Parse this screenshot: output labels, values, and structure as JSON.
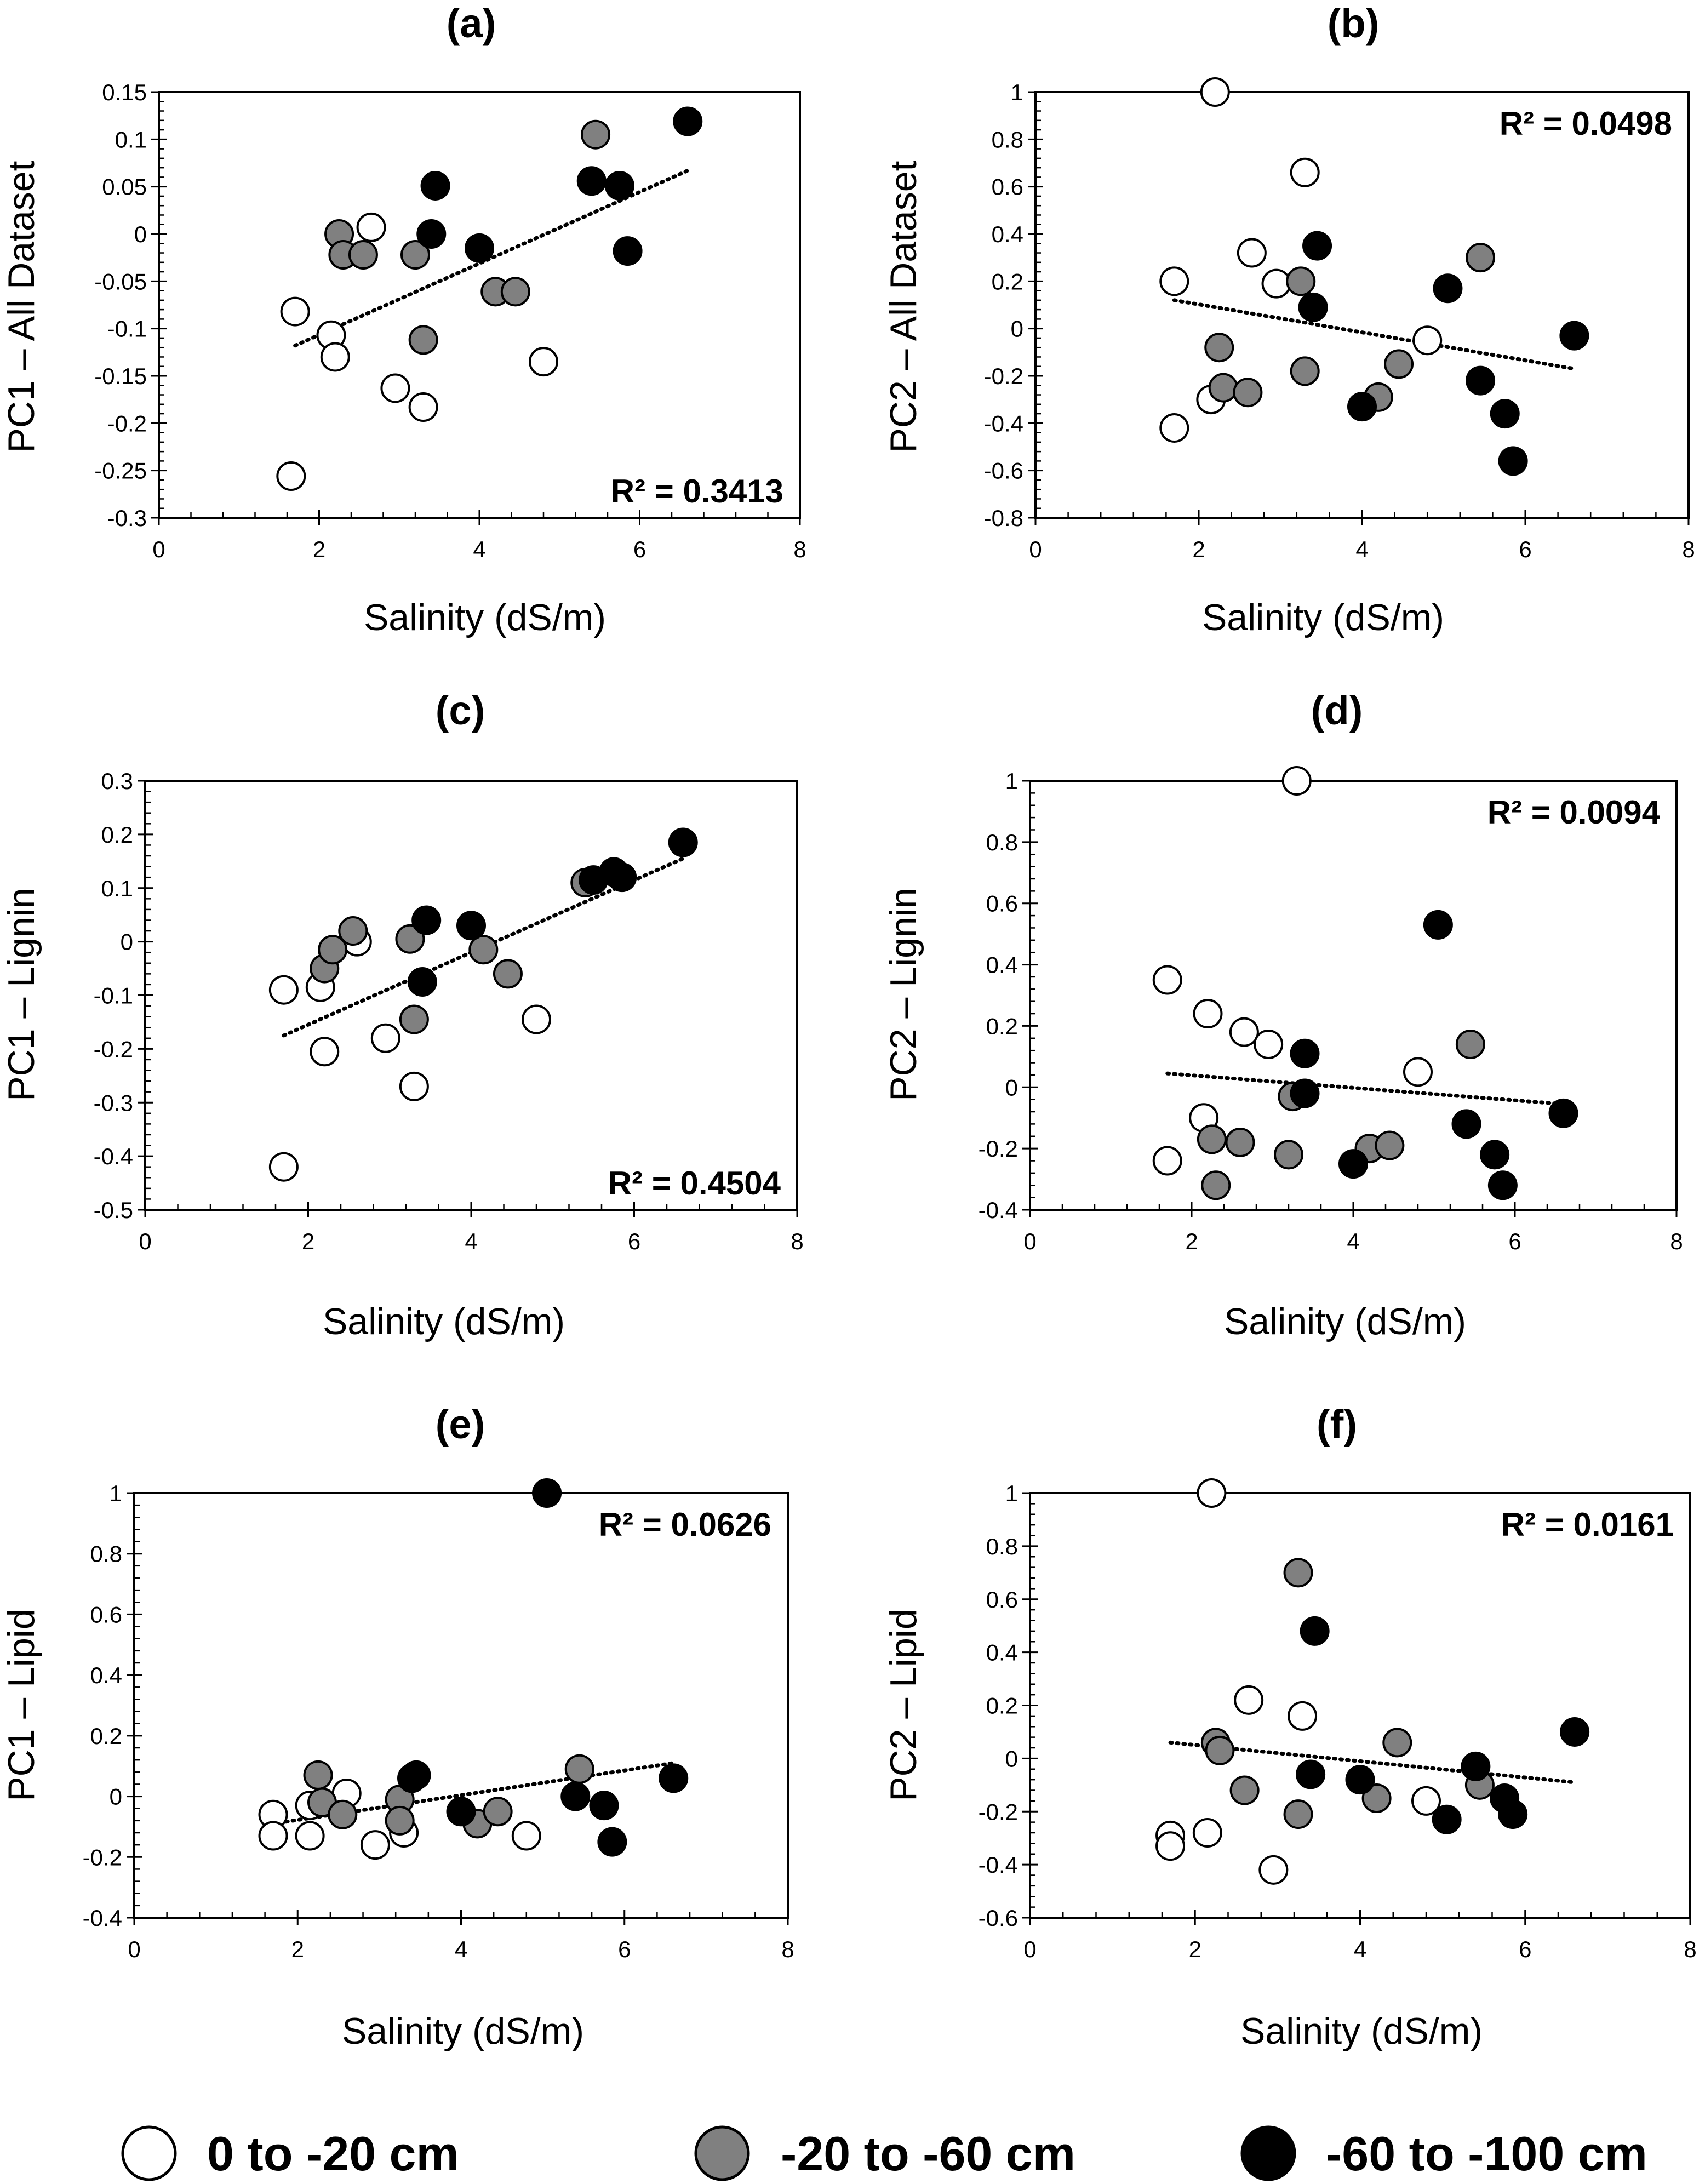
{
  "colors": {
    "shallow": "#ffffff",
    "mid": "#808080",
    "deep": "#000000",
    "stroke": "#000000"
  },
  "legend": [
    {
      "label": "0 to -20 cm",
      "color": "#ffffff"
    },
    {
      "label": "-20 to -60 cm",
      "color": "#808080"
    },
    {
      "label": "-60 to -100 cm",
      "color": "#000000"
    }
  ],
  "chart_data": [
    {
      "panel": "(a)",
      "type": "scatter",
      "xlabel": "Salinity (dS/m)",
      "ylabel": "PC1 – All Dataset",
      "xlim": [
        0,
        8
      ],
      "ylim": [
        -0.3,
        0.15
      ],
      "xticks": [
        0,
        2,
        4,
        6,
        8
      ],
      "xtick_labels": [
        "0",
        "2",
        "4",
        "6",
        "8"
      ],
      "yticks": [
        -0.3,
        -0.25,
        -0.2,
        -0.15,
        -0.1,
        -0.05,
        0,
        0.05,
        0.1,
        0.15
      ],
      "ytick_labels": [
        "-0.3",
        "-0.25",
        "-0.2",
        "-0.15",
        "-0.1",
        "-0.05",
        "0",
        "0.05",
        "0.1",
        "0.15"
      ],
      "r2": "R² = 0.3413",
      "r2_corner": "bottom-right",
      "trendline": {
        "x": [
          1.7,
          6.6
        ],
        "y": [
          -0.118,
          0.067
        ]
      },
      "series": [
        {
          "name": "0 to -20 cm",
          "color": "#ffffff",
          "points": [
            [
              1.7,
              -0.082
            ],
            [
              2.15,
              -0.107
            ],
            [
              2.2,
              -0.13
            ],
            [
              2.65,
              0.007
            ],
            [
              2.95,
              -0.163
            ],
            [
              3.3,
              -0.183
            ],
            [
              1.65,
              -0.256
            ],
            [
              4.8,
              -0.135
            ]
          ]
        },
        {
          "name": "-20 to -60 cm",
          "color": "#808080",
          "points": [
            [
              2.25,
              0.0
            ],
            [
              2.3,
              -0.022
            ],
            [
              2.55,
              -0.022
            ],
            [
              3.2,
              -0.022
            ],
            [
              3.3,
              -0.112
            ],
            [
              4.2,
              -0.061
            ],
            [
              4.45,
              -0.061
            ],
            [
              5.45,
              0.105
            ]
          ]
        },
        {
          "name": "-60 to -100 cm",
          "color": "#000000",
          "points": [
            [
              3.45,
              0.051
            ],
            [
              3.4,
              0.0
            ],
            [
              4.0,
              -0.015
            ],
            [
              5.4,
              0.056
            ],
            [
              5.75,
              0.051
            ],
            [
              5.85,
              -0.018
            ],
            [
              6.6,
              0.119
            ]
          ]
        }
      ]
    },
    {
      "panel": "(b)",
      "type": "scatter",
      "xlabel": "Salinity (dS/m)",
      "ylabel": "PC2 – All Dataset",
      "xlim": [
        0,
        8
      ],
      "ylim": [
        -0.8,
        1
      ],
      "xticks": [
        0,
        2,
        4,
        6,
        8
      ],
      "xtick_labels": [
        "0",
        "2",
        "4",
        "6",
        "8"
      ],
      "yticks": [
        -0.8,
        -0.6,
        -0.4,
        -0.2,
        0,
        0.2,
        0.4,
        0.6,
        0.8,
        1
      ],
      "ytick_labels": [
        "-0.8",
        "-0.6",
        "-0.4",
        "-0.2",
        "0",
        "0.2",
        "0.4",
        "0.6",
        "0.8",
        "1"
      ],
      "r2": "R² = 0.0498",
      "r2_corner": "top-right",
      "trendline": {
        "x": [
          1.7,
          6.6
        ],
        "y": [
          0.12,
          -0.17
        ]
      },
      "series": [
        {
          "name": "0 to -20 cm",
          "color": "#ffffff",
          "points": [
            [
              2.2,
              1.0
            ],
            [
              3.3,
              0.66
            ],
            [
              2.65,
              0.32
            ],
            [
              1.7,
              0.2
            ],
            [
              2.95,
              0.19
            ],
            [
              2.15,
              -0.3
            ],
            [
              1.7,
              -0.42
            ],
            [
              4.8,
              -0.05
            ]
          ]
        },
        {
          "name": "-20 to -60 cm",
          "color": "#808080",
          "points": [
            [
              3.25,
              0.2
            ],
            [
              2.25,
              -0.08
            ],
            [
              2.3,
              -0.25
            ],
            [
              2.6,
              -0.27
            ],
            [
              3.3,
              -0.18
            ],
            [
              4.45,
              -0.15
            ],
            [
              4.2,
              -0.29
            ],
            [
              5.45,
              0.3
            ]
          ]
        },
        {
          "name": "-60 to -100 cm",
          "color": "#000000",
          "points": [
            [
              3.45,
              0.35
            ],
            [
              3.4,
              0.09
            ],
            [
              5.05,
              0.17
            ],
            [
              4.0,
              -0.33
            ],
            [
              5.45,
              -0.22
            ],
            [
              5.75,
              -0.36
            ],
            [
              5.85,
              -0.56
            ],
            [
              6.6,
              -0.03
            ]
          ]
        }
      ]
    },
    {
      "panel": "(c)",
      "type": "scatter",
      "xlabel": "Salinity (dS/m)",
      "ylabel": "PC1 – Lignin",
      "xlim": [
        0,
        8
      ],
      "ylim": [
        -0.5,
        0.3
      ],
      "xticks": [
        0,
        2,
        4,
        6,
        8
      ],
      "xtick_labels": [
        "0",
        "2",
        "4",
        "6",
        "8"
      ],
      "yticks": [
        -0.5,
        -0.4,
        -0.3,
        -0.2,
        -0.1,
        0,
        0.1,
        0.2,
        0.3
      ],
      "ytick_labels": [
        "-0.5",
        "-0.4",
        "-0.3",
        "-0.2",
        "-0.1",
        "0",
        "0.1",
        "0.2",
        "0.3"
      ],
      "r2": "R² = 0.4504",
      "r2_corner": "bottom-right",
      "trendline": {
        "x": [
          1.7,
          6.6
        ],
        "y": [
          -0.175,
          0.155
        ]
      },
      "series": [
        {
          "name": "0 to -20 cm",
          "color": "#ffffff",
          "points": [
            [
              1.7,
              -0.09
            ],
            [
              2.15,
              -0.085
            ],
            [
              2.6,
              0.0
            ],
            [
              2.2,
              -0.205
            ],
            [
              2.95,
              -0.18
            ],
            [
              3.3,
              -0.27
            ],
            [
              1.7,
              -0.42
            ],
            [
              4.8,
              -0.145
            ]
          ]
        },
        {
          "name": "-20 to -60 cm",
          "color": "#808080",
          "points": [
            [
              2.2,
              -0.05
            ],
            [
              2.3,
              -0.015
            ],
            [
              2.55,
              0.02
            ],
            [
              3.25,
              0.005
            ],
            [
              3.3,
              -0.145
            ],
            [
              4.15,
              -0.015
            ],
            [
              4.45,
              -0.06
            ],
            [
              5.4,
              0.11
            ]
          ]
        },
        {
          "name": "-60 to -100 cm",
          "color": "#000000",
          "points": [
            [
              3.45,
              0.04
            ],
            [
              3.4,
              -0.075
            ],
            [
              4.0,
              0.03
            ],
            [
              5.5,
              0.115
            ],
            [
              5.75,
              0.13
            ],
            [
              5.85,
              0.12
            ],
            [
              6.6,
              0.185
            ]
          ]
        }
      ]
    },
    {
      "panel": "(d)",
      "type": "scatter",
      "xlabel": "Salinity (dS/m)",
      "ylabel": "PC2 – Lignin",
      "xlim": [
        0,
        8
      ],
      "ylim": [
        -0.4,
        1
      ],
      "xticks": [
        0,
        2,
        4,
        6,
        8
      ],
      "xtick_labels": [
        "0",
        "2",
        "4",
        "6",
        "8"
      ],
      "yticks": [
        -0.4,
        -0.2,
        0,
        0.2,
        0.4,
        0.6,
        0.8,
        1
      ],
      "ytick_labels": [
        "-0.4",
        "-0.2",
        "0",
        "0.2",
        "0.4",
        "0.6",
        "0.8",
        "1"
      ],
      "r2": "R² = 0.0094",
      "r2_corner": "top-right",
      "trendline": {
        "x": [
          1.7,
          6.6
        ],
        "y": [
          0.045,
          -0.055
        ]
      },
      "series": [
        {
          "name": "0 to -20 cm",
          "color": "#ffffff",
          "points": [
            [
              3.3,
              1.0
            ],
            [
              1.7,
              0.35
            ],
            [
              2.2,
              0.24
            ],
            [
              2.65,
              0.18
            ],
            [
              2.95,
              0.14
            ],
            [
              4.8,
              0.05
            ],
            [
              2.15,
              -0.1
            ],
            [
              1.7,
              -0.24
            ]
          ]
        },
        {
          "name": "-20 to -60 cm",
          "color": "#808080",
          "points": [
            [
              3.25,
              -0.03
            ],
            [
              2.25,
              -0.17
            ],
            [
              2.6,
              -0.18
            ],
            [
              3.2,
              -0.22
            ],
            [
              4.2,
              -0.2
            ],
            [
              4.45,
              -0.19
            ],
            [
              2.3,
              -0.32
            ],
            [
              5.45,
              0.14
            ]
          ]
        },
        {
          "name": "-60 to -100 cm",
          "color": "#000000",
          "points": [
            [
              3.4,
              0.11
            ],
            [
              3.4,
              -0.02
            ],
            [
              5.05,
              0.53
            ],
            [
              4.0,
              -0.25
            ],
            [
              5.4,
              -0.12
            ],
            [
              5.75,
              -0.22
            ],
            [
              5.85,
              -0.32
            ],
            [
              6.6,
              -0.085
            ]
          ]
        }
      ]
    },
    {
      "panel": "(e)",
      "type": "scatter",
      "xlabel": "Salinity (dS/m)",
      "ylabel": "PC1 – Lipid",
      "xlim": [
        0,
        8
      ],
      "ylim": [
        -0.4,
        1
      ],
      "xticks": [
        0,
        2,
        4,
        6,
        8
      ],
      "xtick_labels": [
        "0",
        "2",
        "4",
        "6",
        "8"
      ],
      "yticks": [
        -0.4,
        -0.2,
        0,
        0.2,
        0.4,
        0.6,
        0.8,
        1
      ],
      "ytick_labels": [
        "-0.4",
        "-0.2",
        "0",
        "0.2",
        "0.4",
        "0.6",
        "0.8",
        "1"
      ],
      "r2": "R² = 0.0626",
      "r2_corner": "top-right",
      "trendline": {
        "x": [
          1.7,
          6.6
        ],
        "y": [
          -0.09,
          0.11
        ]
      },
      "series": [
        {
          "name": "0 to -20 cm",
          "color": "#ffffff",
          "points": [
            [
              1.7,
              -0.06
            ],
            [
              1.7,
              -0.13
            ],
            [
              2.15,
              -0.13
            ],
            [
              2.15,
              -0.03
            ],
            [
              2.6,
              0.01
            ],
            [
              2.95,
              -0.16
            ],
            [
              3.3,
              -0.12
            ],
            [
              4.8,
              -0.13
            ]
          ]
        },
        {
          "name": "-20 to -60 cm",
          "color": "#808080",
          "points": [
            [
              2.25,
              0.07
            ],
            [
              2.3,
              -0.02
            ],
            [
              2.55,
              -0.06
            ],
            [
              3.25,
              -0.01
            ],
            [
              3.25,
              -0.08
            ],
            [
              4.2,
              -0.09
            ],
            [
              4.45,
              -0.05
            ],
            [
              5.45,
              0.09
            ]
          ]
        },
        {
          "name": "-60 to -100 cm",
          "color": "#000000",
          "points": [
            [
              3.45,
              0.07
            ],
            [
              3.4,
              0.06
            ],
            [
              4.0,
              -0.05
            ],
            [
              5.05,
              1.0
            ],
            [
              5.4,
              0.0
            ],
            [
              5.75,
              -0.03
            ],
            [
              5.85,
              -0.15
            ],
            [
              6.6,
              0.06
            ]
          ]
        }
      ]
    },
    {
      "panel": "(f)",
      "type": "scatter",
      "xlabel": "Salinity (dS/m)",
      "ylabel": "PC2 – Lipid",
      "xlim": [
        0,
        8
      ],
      "ylim": [
        -0.6,
        1
      ],
      "xticks": [
        0,
        2,
        4,
        6,
        8
      ],
      "xtick_labels": [
        "0",
        "2",
        "4",
        "6",
        "8"
      ],
      "yticks": [
        -0.6,
        -0.4,
        -0.2,
        0,
        0.2,
        0.4,
        0.6,
        0.8,
        1
      ],
      "ytick_labels": [
        "-0.6",
        "-0.4",
        "-0.2",
        "0",
        "0.2",
        "0.4",
        "0.6",
        "0.8",
        "1"
      ],
      "r2": "R² = 0.0161",
      "r2_corner": "top-right",
      "trendline": {
        "x": [
          1.7,
          6.6
        ],
        "y": [
          0.06,
          -0.09
        ]
      },
      "series": [
        {
          "name": "0 to -20 cm",
          "color": "#ffffff",
          "points": [
            [
              2.2,
              1.0
            ],
            [
              2.65,
              0.22
            ],
            [
              3.3,
              0.16
            ],
            [
              1.7,
              -0.29
            ],
            [
              1.7,
              -0.33
            ],
            [
              2.15,
              -0.28
            ],
            [
              2.95,
              -0.42
            ],
            [
              4.8,
              -0.16
            ]
          ]
        },
        {
          "name": "-20 to -60 cm",
          "color": "#808080",
          "points": [
            [
              3.25,
              0.7
            ],
            [
              2.25,
              0.06
            ],
            [
              2.3,
              0.03
            ],
            [
              2.6,
              -0.12
            ],
            [
              3.25,
              -0.21
            ],
            [
              4.45,
              0.06
            ],
            [
              4.2,
              -0.15
            ],
            [
              5.45,
              -0.1
            ]
          ]
        },
        {
          "name": "-60 to -100 cm",
          "color": "#000000",
          "points": [
            [
              3.45,
              0.48
            ],
            [
              3.4,
              -0.06
            ],
            [
              4.0,
              -0.08
            ],
            [
              5.05,
              -0.23
            ],
            [
              5.4,
              -0.03
            ],
            [
              5.75,
              -0.15
            ],
            [
              5.85,
              -0.21
            ],
            [
              6.6,
              0.1
            ]
          ]
        }
      ]
    }
  ]
}
